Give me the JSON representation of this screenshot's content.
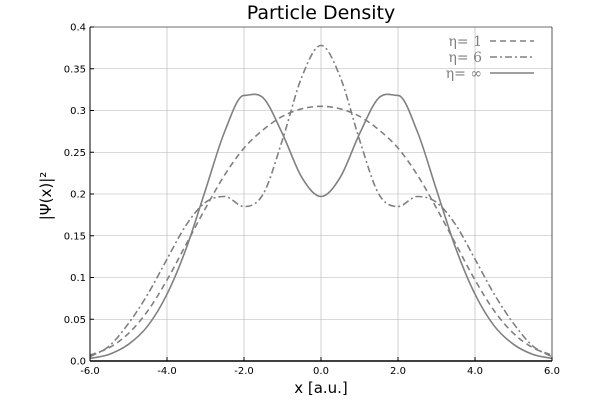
{
  "chart_data": {
    "type": "line",
    "title": "Particle Density",
    "xlabel": "x [a.u.]",
    "ylabel": "|Ψ(x)|²",
    "xlim": [
      -6.0,
      6.0
    ],
    "ylim": [
      0.0,
      0.4
    ],
    "x_ticks": [
      -6.0,
      -4.0,
      -2.0,
      0.0,
      2.0,
      4.0,
      6.0
    ],
    "x_tick_labels": [
      "-6.0",
      "-4.0",
      "-2.0",
      "0.0",
      "2.0",
      "4.0",
      "6.0"
    ],
    "y_ticks": [
      0.0,
      0.05,
      0.1,
      0.15,
      0.2,
      0.25,
      0.3,
      0.35,
      0.4
    ],
    "y_tick_labels": [
      "0.0",
      "0.05",
      "0.1",
      "0.15",
      "0.2",
      "0.25",
      "0.3",
      "0.35",
      "0.4"
    ],
    "grid": true,
    "legend_position": "top-right",
    "line_color": "#808080",
    "series": [
      {
        "name": "η= 1",
        "dash": "dash",
        "x": [
          -6.0,
          -5.5,
          -5.0,
          -4.5,
          -4.0,
          -3.5,
          -3.0,
          -2.5,
          -2.0,
          -1.5,
          -1.0,
          -0.5,
          0.0,
          0.5,
          1.0,
          1.5,
          2.0,
          2.5,
          3.0,
          3.5,
          4.0,
          4.5,
          5.0,
          5.5,
          6.0
        ],
        "y": [
          0.007,
          0.016,
          0.033,
          0.06,
          0.097,
          0.14,
          0.183,
          0.223,
          0.255,
          0.277,
          0.293,
          0.302,
          0.305,
          0.302,
          0.293,
          0.277,
          0.255,
          0.223,
          0.183,
          0.14,
          0.097,
          0.06,
          0.033,
          0.016,
          0.007
        ]
      },
      {
        "name": "η= 6",
        "dash": "dashdot",
        "x": [
          -6.0,
          -5.5,
          -5.0,
          -4.5,
          -4.0,
          -3.5,
          -3.0,
          -2.5,
          -2.0,
          -1.5,
          -1.0,
          -0.5,
          0.0,
          0.5,
          1.0,
          1.5,
          2.0,
          2.5,
          3.0,
          3.5,
          4.0,
          4.5,
          5.0,
          5.5,
          6.0
        ],
        "y": [
          0.005,
          0.018,
          0.045,
          0.08,
          0.122,
          0.163,
          0.19,
          0.197,
          0.185,
          0.2,
          0.265,
          0.34,
          0.378,
          0.34,
          0.265,
          0.2,
          0.185,
          0.197,
          0.19,
          0.163,
          0.122,
          0.08,
          0.045,
          0.018,
          0.005
        ]
      },
      {
        "name": "η= ∞",
        "dash": "solid",
        "x": [
          -6.0,
          -5.5,
          -5.0,
          -4.5,
          -4.0,
          -3.5,
          -3.0,
          -2.5,
          -2.0,
          -1.5,
          -1.0,
          -0.5,
          0.0,
          0.5,
          1.0,
          1.5,
          2.0,
          2.5,
          3.0,
          3.5,
          4.0,
          4.5,
          5.0,
          5.5,
          6.0
        ],
        "y": [
          0.003,
          0.008,
          0.02,
          0.042,
          0.08,
          0.135,
          0.205,
          0.275,
          0.318,
          0.315,
          0.272,
          0.22,
          0.197,
          0.22,
          0.272,
          0.315,
          0.318,
          0.275,
          0.205,
          0.135,
          0.08,
          0.042,
          0.02,
          0.008,
          0.003
        ]
      }
    ]
  }
}
